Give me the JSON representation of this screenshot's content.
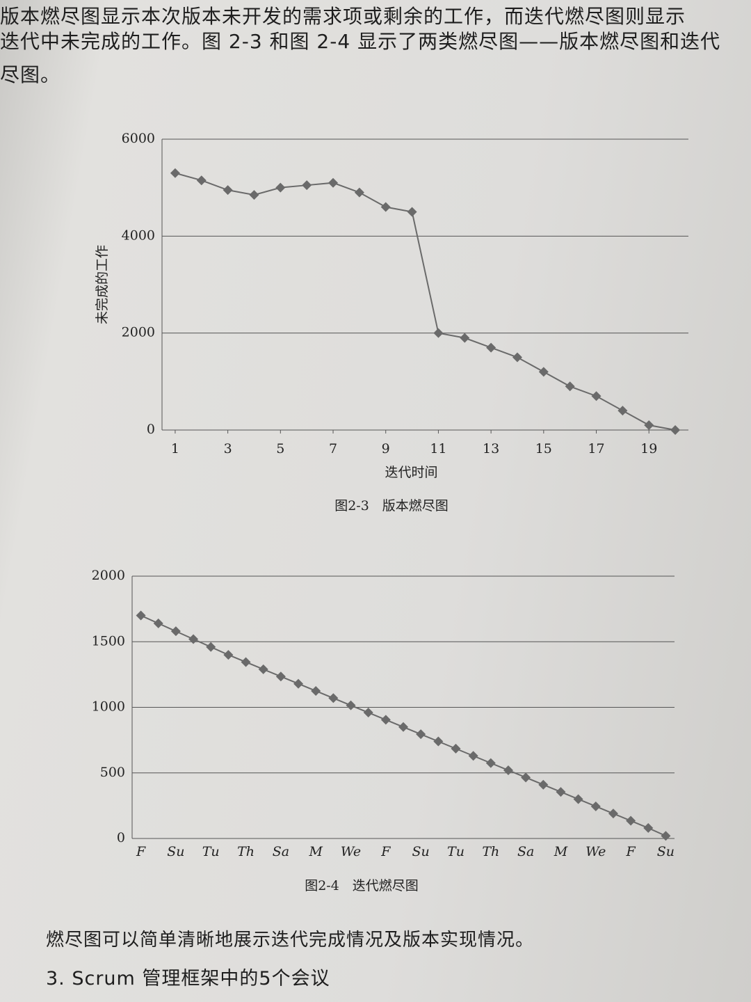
{
  "text": {
    "top": [
      "版本燃尽图显示本次版本未开发的需求项或剩余的工作，而迭代燃尽图则显示",
      "迭代中未完成的工作。图 2-3 和图 2-4 显示了两类燃尽图——版本燃尽图和迭代",
      "尽图。"
    ],
    "bottom": [
      "燃尽图可以简单清晰地展示迭代完成情况及版本实现情况。",
      "3.  Scrum 管理框架中的5个会议"
    ]
  },
  "chart_data": [
    {
      "type": "line",
      "caption": "图2-3　版本燃尽图",
      "y_label": "未完成的工作",
      "x_label": "迭代时间",
      "x": [
        1,
        2,
        3,
        4,
        5,
        6,
        7,
        8,
        9,
        10,
        11,
        12,
        13,
        14,
        15,
        16,
        17,
        18,
        19,
        20
      ],
      "values": [
        5300,
        5150,
        4950,
        4850,
        5000,
        5050,
        5100,
        4900,
        4600,
        4500,
        2000,
        1900,
        1700,
        1500,
        1200,
        900,
        700,
        400,
        100,
        0
      ],
      "xlim": [
        0.5,
        20.5
      ],
      "xticks": [
        1,
        3,
        5,
        7,
        9,
        11,
        13,
        15,
        17,
        19
      ],
      "ylim": [
        0,
        6000
      ],
      "yticks": [
        0,
        2000,
        4000,
        6000
      ],
      "grid": true,
      "color": "#6a6a6a"
    },
    {
      "type": "line",
      "caption": "图2-4　迭代燃尽图",
      "categories": [
        "F",
        null,
        "Su",
        null,
        "Tu",
        null,
        "Th",
        null,
        "Sa",
        null,
        "M",
        null,
        "We",
        null,
        "F",
        null,
        "Su",
        null,
        "Tu",
        null,
        "Th",
        null,
        "Sa",
        null,
        "M",
        null,
        "We",
        null,
        "F",
        null,
        "Su"
      ],
      "values": [
        1700,
        1640,
        1580,
        1520,
        1460,
        1400,
        1345,
        1290,
        1235,
        1180,
        1125,
        1070,
        1015,
        960,
        905,
        850,
        795,
        740,
        685,
        630,
        575,
        520,
        465,
        410,
        355,
        300,
        245,
        190,
        135,
        80,
        20
      ],
      "ylim": [
        0,
        2000
      ],
      "yticks": [
        0,
        500,
        1000,
        1500,
        2000
      ],
      "grid": true,
      "color": "#6a6a6a"
    }
  ]
}
